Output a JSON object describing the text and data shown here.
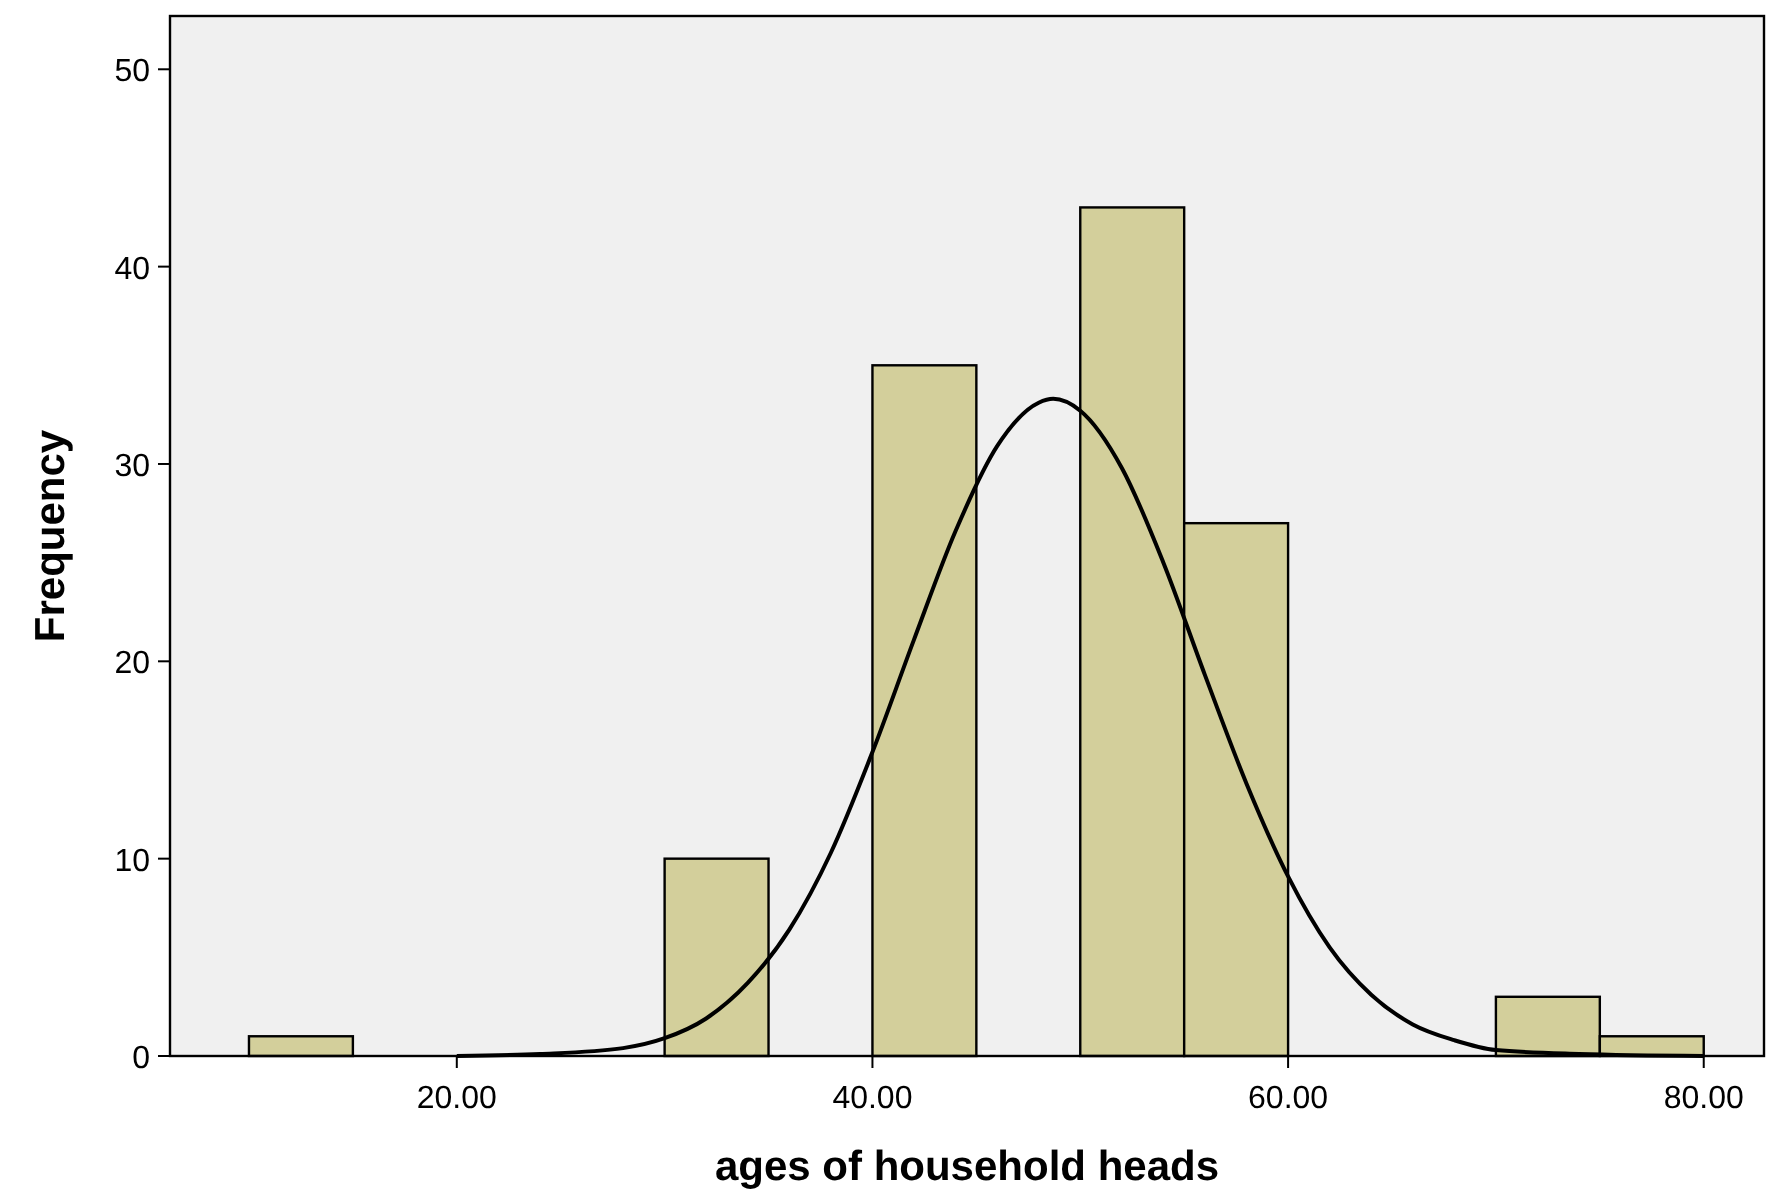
{
  "chart_data": {
    "type": "histogram",
    "xlabel": "ages of household heads",
    "ylabel": "Frequency",
    "xlim": [
      6.2,
      82.9
    ],
    "ylim": [
      0,
      52.7
    ],
    "xticks": [
      {
        "value": 20,
        "label": "20.00"
      },
      {
        "value": 40,
        "label": "40.00"
      },
      {
        "value": 60,
        "label": "60.00"
      },
      {
        "value": 80,
        "label": "80.00"
      }
    ],
    "yticks": [
      0,
      10,
      20,
      30,
      40,
      50
    ],
    "grid": false,
    "series": [
      {
        "color": "#d3cf9b",
        "bins": [
          10,
          15,
          20,
          25,
          30,
          35,
          40,
          45,
          50,
          55,
          60,
          65,
          70,
          75,
          80
        ],
        "values": [
          1,
          0,
          0,
          0,
          10,
          0,
          35,
          0,
          43,
          27,
          0,
          0,
          3,
          1
        ]
      },
      {
        "type": "line",
        "color": "#000000",
        "x": [
          20,
          24,
          28,
          30,
          32,
          34,
          36,
          38,
          40,
          42,
          44,
          46,
          48,
          48.7,
          50,
          52,
          54,
          56,
          58,
          60,
          62,
          64,
          66,
          68,
          70,
          74,
          80
        ],
        "values": [
          0,
          0.1,
          0.4,
          0.9,
          1.9,
          3.7,
          6.4,
          10.3,
          15.4,
          21.1,
          26.6,
          30.9,
          33.1,
          33.3,
          32.7,
          29.8,
          25.0,
          19.3,
          13.8,
          9.1,
          5.5,
          3.1,
          1.6,
          0.8,
          0.3,
          0.1,
          0
        ]
      }
    ]
  }
}
